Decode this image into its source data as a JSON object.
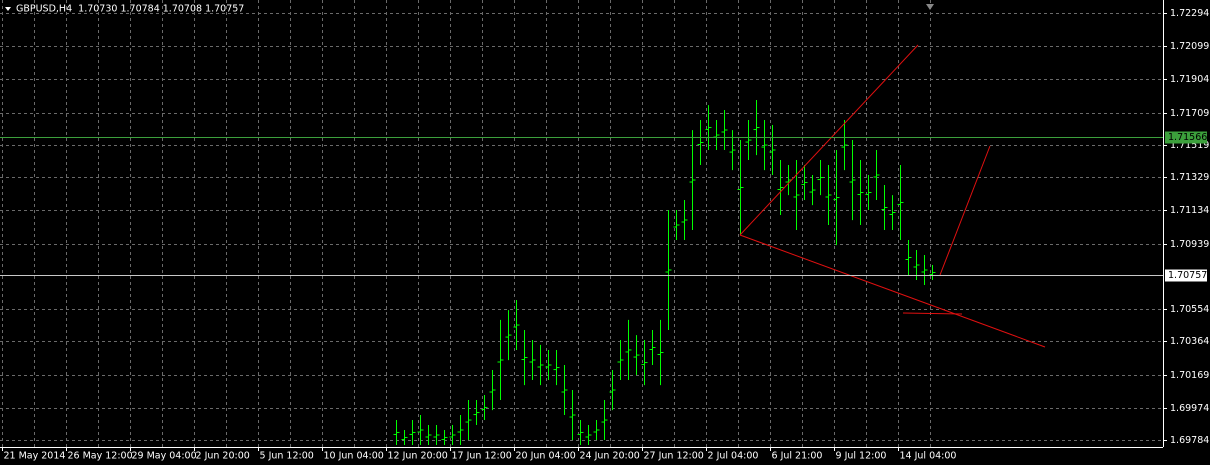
{
  "chart_data": {
    "type": "range",
    "title": "GBPUSD,H4  1.70730 1.70784 1.70708 1.70757",
    "color": "#00ff00",
    "grid": true,
    "ylim": [
      1.69743,
      1.72359
    ],
    "yticks": [
      1.72294,
      1.72099,
      1.71904,
      1.71709,
      1.71519,
      1.71329,
      1.71134,
      1.70939,
      1.70554,
      1.70364,
      1.70169,
      1.69974,
      1.69784
    ],
    "xlabels": [
      "21 May 2014",
      "26 May 12:00",
      "29 May 04:00",
      "2 Jun 20:00",
      "5 Jun 12:00",
      "10 Jun 04:00",
      "12 Jun 20:00",
      "17 Jun 12:00",
      "20 Jun 04:00",
      "24 Jun 20:00",
      "27 Jun 12:00",
      "2 Jul 04:00",
      "6 Jul 21:00",
      "9 Jul 12:00",
      "14 Jul 04:00"
    ],
    "high": [
      1.69902,
      1.69843,
      1.69902,
      1.69931,
      1.69872,
      1.69872,
      1.69843,
      1.69872,
      1.69931,
      1.70019,
      1.70019,
      1.70049,
      1.70196,
      1.7049,
      1.70548,
      1.70607,
      1.70431,
      1.70372,
      1.70343,
      1.70313,
      1.70313,
      1.70225,
      1.70078,
      1.69902,
      1.69872,
      1.69902,
      1.70019,
      1.70196,
      1.70372,
      1.7049,
      1.70401,
      1.70372,
      1.70431,
      1.7049,
      1.71136,
      1.71136,
      1.71195,
      1.71606,
      1.71665,
      1.71753,
      1.71665,
      1.71724,
      1.71606,
      1.71548,
      1.71665,
      1.71783,
      1.71665,
      1.71636,
      1.7143,
      1.71401,
      1.7143,
      1.71401,
      1.71342,
      1.7143,
      1.71401,
      1.71489,
      1.71665,
      1.71548,
      1.7143,
      1.71342,
      1.71489,
      1.71283,
      1.71224,
      1.71401,
      1.7096,
      1.70901,
      1.70872,
      1.70813
    ],
    "low": [
      1.69755,
      1.69755,
      1.69755,
      1.69755,
      1.69755,
      1.69755,
      1.69755,
      1.69755,
      1.69755,
      1.69784,
      1.69872,
      1.69902,
      1.6996,
      1.70019,
      1.70254,
      1.70313,
      1.70107,
      1.70137,
      1.70107,
      1.70137,
      1.70107,
      1.69931,
      1.69784,
      1.69755,
      1.69755,
      1.69784,
      1.69784,
      1.6996,
      1.70137,
      1.70137,
      1.70166,
      1.70107,
      1.70225,
      1.70107,
      1.70431,
      1.7096,
      1.7096,
      1.71019,
      1.71401,
      1.71489,
      1.71489,
      1.71489,
      1.71371,
      1.70989,
      1.7143,
      1.71459,
      1.71371,
      1.71342,
      1.71107,
      1.71224,
      1.71019,
      1.71195,
      1.71165,
      1.71224,
      1.71048,
      1.7093,
      1.71371,
      1.71077,
      1.71048,
      1.71136,
      1.71195,
      1.71019,
      1.71019,
      1.7096,
      1.70754,
      1.70725,
      1.70695,
      1.70725
    ],
    "levels": [
      {
        "value": 1.71566,
        "color": "#3ca03c"
      },
      {
        "value": 1.70757,
        "color": "#c8c8c8"
      }
    ]
  }
}
